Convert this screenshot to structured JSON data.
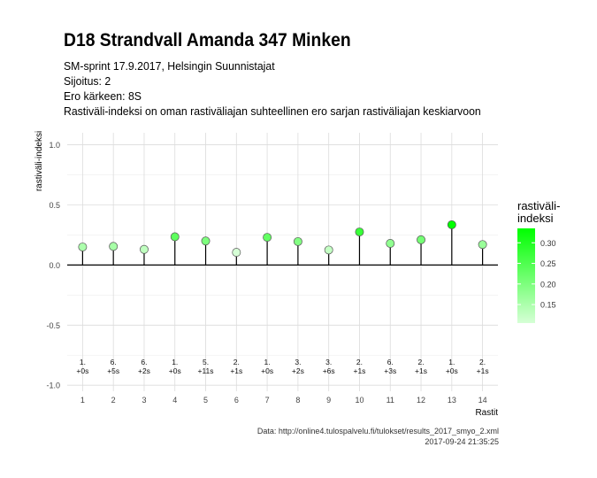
{
  "header": {
    "title": "D18 Strandvall Amanda 347 Minken",
    "subtitle_lines": [
      "SM-sprint 17.9.2017, Helsingin Suunnistajat",
      "Sijoitus: 2",
      "Ero kärkeen: 8S",
      "Rastiväli-indeksi on oman rastiväliajan suhteellinen ero sarjan rastiväliajan keskiarvoon"
    ]
  },
  "footer": {
    "source": "Data: http://online4.tulospalvelu.fi/tulokset/results_2017_smyo_2.xml",
    "timestamp": "2017-09-24 21:35:25"
  },
  "chart_data": {
    "type": "lollipop",
    "xlabel": "Rastit",
    "ylabel": "rastiväli-indeksi",
    "ylim": [
      -1.05,
      1.1
    ],
    "yticks": [
      -1.0,
      -0.5,
      0.0,
      0.5,
      1.0
    ],
    "ytick_labels": [
      "-1.0",
      "-0.5",
      "0.0",
      "0.5",
      "1.0"
    ],
    "x": [
      1,
      2,
      3,
      4,
      5,
      6,
      7,
      8,
      9,
      10,
      11,
      12,
      13,
      14
    ],
    "values": [
      0.15,
      0.155,
      0.13,
      0.235,
      0.2,
      0.105,
      0.23,
      0.195,
      0.125,
      0.275,
      0.18,
      0.21,
      0.335,
      0.17
    ],
    "rank_labels": [
      "1.",
      "6.",
      "6.",
      "1.",
      "5.",
      "2.",
      "1.",
      "3.",
      "3.",
      "2.",
      "6.",
      "2.",
      "1.",
      "2."
    ],
    "diff_labels": [
      "+0s",
      "+5s",
      "+2s",
      "+0s",
      "+11s",
      "+1s",
      "+0s",
      "+2s",
      "+6s",
      "+1s",
      "+3s",
      "+1s",
      "+0s",
      "+1s"
    ],
    "grid": true,
    "legend": {
      "title_lines": [
        "rastiväli-",
        "indeksi"
      ],
      "ticks": [
        0.15,
        0.2,
        0.25,
        0.3
      ],
      "tick_labels": [
        "0.15",
        "0.20",
        "0.25",
        "0.30"
      ],
      "range": [
        0.105,
        0.335
      ],
      "low_color": "#d6ffd6",
      "high_color": "#00ff00",
      "placement": "right"
    }
  }
}
